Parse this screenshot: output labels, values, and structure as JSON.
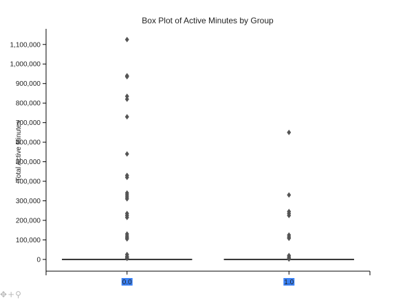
{
  "chart_data": {
    "type": "box",
    "title": "Box Plot of Active Minutes by Group",
    "xlabel": "",
    "ylabel": "Total Active Minutes",
    "categories": [
      "0.0",
      "1.0"
    ],
    "ylim": [
      -60000,
      1180000
    ],
    "yticks": [
      0,
      100000,
      200000,
      300000,
      400000,
      500000,
      600000,
      700000,
      800000,
      900000,
      1000000,
      1100000
    ],
    "ytick_labels": [
      "0",
      "100,000",
      "200,000",
      "300,000",
      "400,000",
      "500,000",
      "600,000",
      "700,000",
      "800,000",
      "900,000",
      "1,000,000",
      "1,100,000"
    ],
    "grid": false,
    "series": [
      {
        "category": "0.0",
        "median": 0,
        "q1": 0,
        "q3": 0,
        "whisker_low": 0,
        "whisker_high": 0,
        "outliers": [
          1125000,
          940000,
          935000,
          835000,
          820000,
          730000,
          540000,
          430000,
          420000,
          340000,
          330000,
          320000,
          310000,
          235000,
          225000,
          215000,
          130000,
          120000,
          112000,
          105000,
          25000,
          15000,
          10000,
          5000
        ]
      },
      {
        "category": "1.0",
        "median": 0,
        "q1": 0,
        "q3": 0,
        "whisker_low": 0,
        "whisker_high": 0,
        "outliers": [
          650000,
          330000,
          245000,
          235000,
          225000,
          125000,
          115000,
          108000,
          20000,
          12000,
          6000,
          2000
        ]
      }
    ],
    "colors": {
      "box": "#333333",
      "outlier": "#555555",
      "category_highlight": "#3b82f6"
    }
  },
  "toolbar": {
    "icons": [
      "move-icon",
      "add-icon",
      "zoom-icon"
    ]
  }
}
